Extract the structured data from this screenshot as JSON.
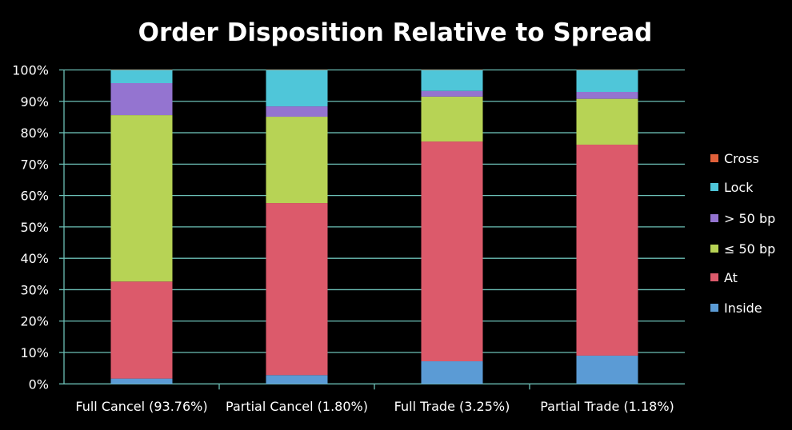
{
  "chart_data": {
    "type": "stacked-bar-100",
    "title": "Order Disposition Relative to Spread",
    "xlabel": "",
    "ylabel": "",
    "ylim": [
      0,
      100
    ],
    "y_ticks": [
      "0%",
      "10%",
      "20%",
      "30%",
      "40%",
      "50%",
      "60%",
      "70%",
      "80%",
      "90%",
      "100%"
    ],
    "grid": true,
    "legend_position": "right",
    "categories": [
      "Full Cancel (93.76%)",
      "Partial Cancel (1.80%)",
      "Full Trade (3.25%)",
      "Partial Trade (1.18%)"
    ],
    "series": [
      {
        "name": "Inside",
        "color": "#5b9bd5",
        "values": [
          1.7,
          2.8,
          7.2,
          9.0
        ]
      },
      {
        "name": "At",
        "color": "#dc5a6b",
        "values": [
          30.9,
          54.8,
          70.0,
          67.2
        ]
      },
      {
        "name": "≤ 50 bp",
        "color": "#b7d355",
        "values": [
          53.0,
          27.5,
          14.3,
          14.6
        ]
      },
      {
        "name": "> 50 bp",
        "color": "#9474d0",
        "values": [
          10.2,
          3.3,
          1.8,
          2.2
        ]
      },
      {
        "name": "Lock",
        "color": "#4fc6d9",
        "values": [
          4.1,
          11.5,
          6.6,
          6.9
        ]
      },
      {
        "name": "Cross",
        "color": "#e0603a",
        "values": [
          0.1,
          0.1,
          0.1,
          0.1
        ]
      }
    ]
  }
}
